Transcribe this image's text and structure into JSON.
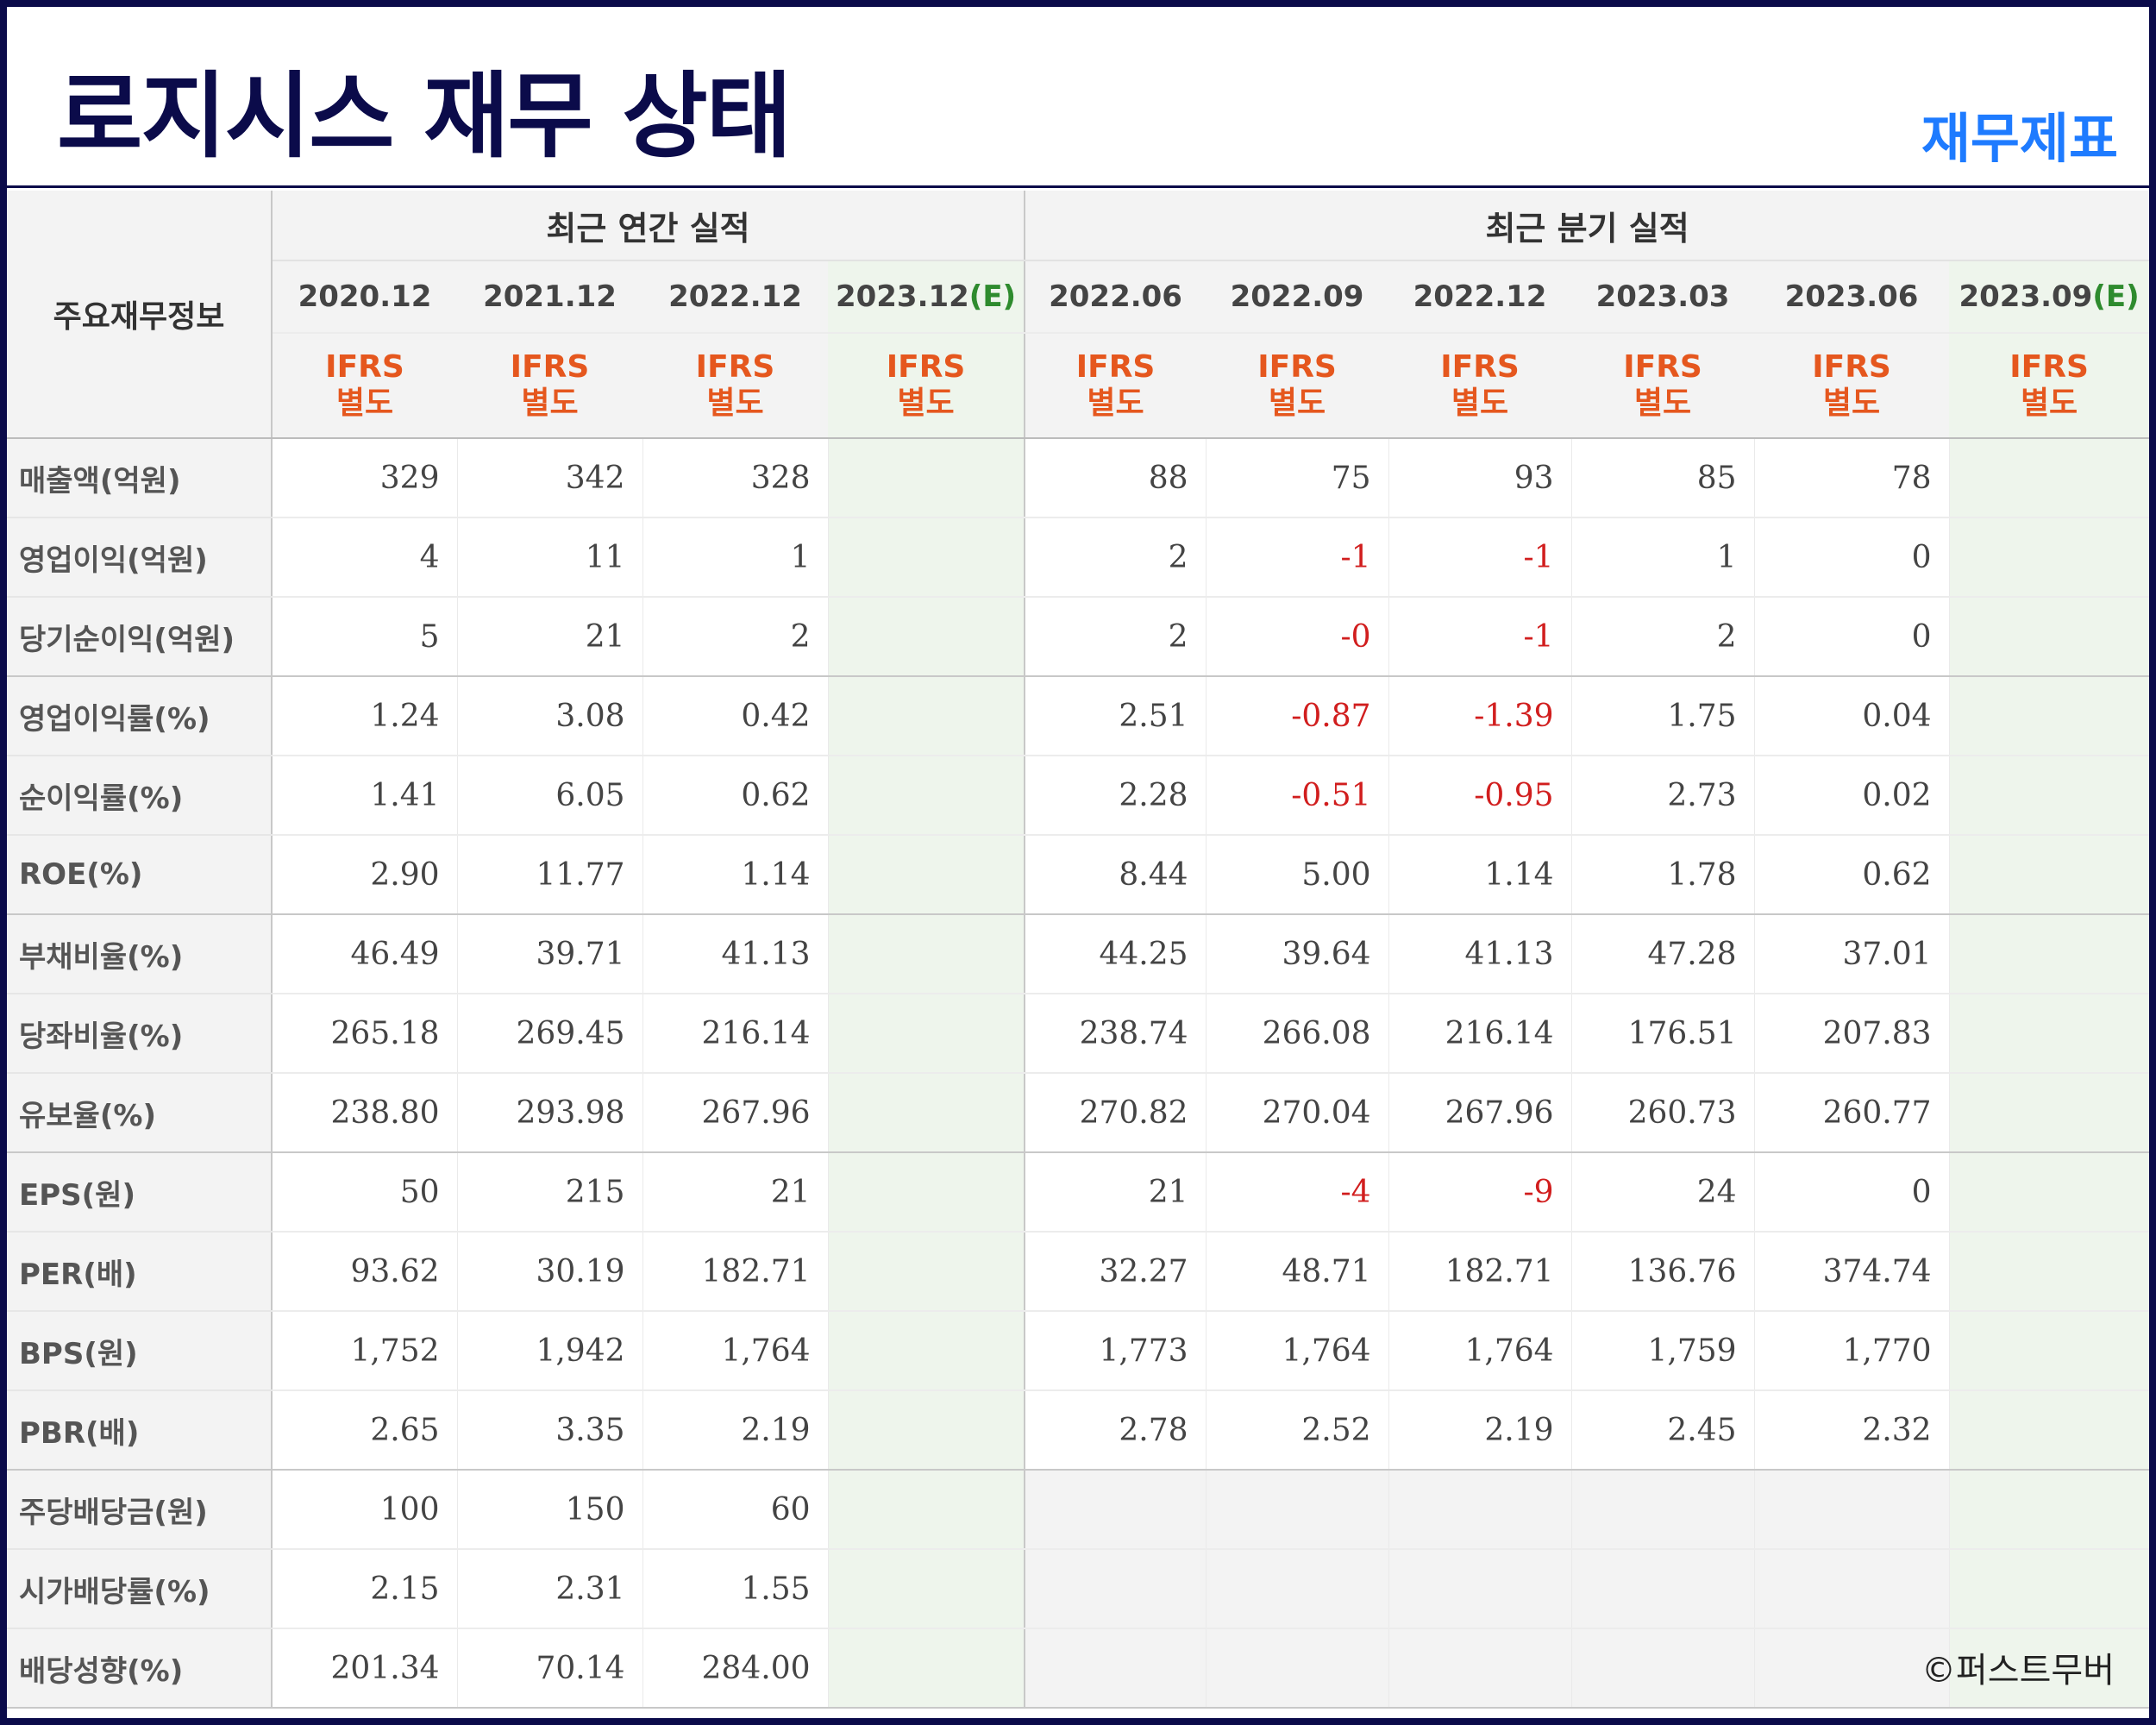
{
  "title": "로지시스 재무 상태",
  "badge": "재무제표",
  "watermark": "©퍼스트무버",
  "table": {
    "main_header": "주요재무정보",
    "annual_header": "최근 연간 실적",
    "quarter_header": "최근 분기 실적",
    "annual_periods": [
      {
        "label": "2020.12",
        "est": ""
      },
      {
        "label": "2021.12",
        "est": ""
      },
      {
        "label": "2022.12",
        "est": ""
      },
      {
        "label": "2023.12",
        "est": "(E)"
      }
    ],
    "quarter_periods": [
      {
        "label": "2022.06",
        "est": ""
      },
      {
        "label": "2022.09",
        "est": ""
      },
      {
        "label": "2022.12",
        "est": ""
      },
      {
        "label": "2023.03",
        "est": ""
      },
      {
        "label": "2023.06",
        "est": ""
      },
      {
        "label": "2023.09",
        "est": "(E)"
      }
    ],
    "ifrs_line1": "IFRS",
    "ifrs_line2": "별도",
    "rows": [
      {
        "label": "매출액(억원)",
        "annual": [
          "329",
          "342",
          "328",
          ""
        ],
        "quarter": [
          "88",
          "75",
          "93",
          "85",
          "78",
          ""
        ]
      },
      {
        "label": "영업이익(억원)",
        "annual": [
          "4",
          "11",
          "1",
          ""
        ],
        "quarter": [
          "2",
          "-1",
          "-1",
          "1",
          "0",
          ""
        ]
      },
      {
        "label": "당기순이익(억원)",
        "annual": [
          "5",
          "21",
          "2",
          ""
        ],
        "quarter": [
          "2",
          "-0",
          "-1",
          "2",
          "0",
          ""
        ]
      },
      {
        "label": "영업이익률(%)",
        "annual": [
          "1.24",
          "3.08",
          "0.42",
          ""
        ],
        "quarter": [
          "2.51",
          "-0.87",
          "-1.39",
          "1.75",
          "0.04",
          ""
        ]
      },
      {
        "label": "순이익률(%)",
        "annual": [
          "1.41",
          "6.05",
          "0.62",
          ""
        ],
        "quarter": [
          "2.28",
          "-0.51",
          "-0.95",
          "2.73",
          "0.02",
          ""
        ]
      },
      {
        "label": "ROE(%)",
        "annual": [
          "2.90",
          "11.77",
          "1.14",
          ""
        ],
        "quarter": [
          "8.44",
          "5.00",
          "1.14",
          "1.78",
          "0.62",
          ""
        ]
      },
      {
        "label": "부채비율(%)",
        "annual": [
          "46.49",
          "39.71",
          "41.13",
          ""
        ],
        "quarter": [
          "44.25",
          "39.64",
          "41.13",
          "47.28",
          "37.01",
          ""
        ]
      },
      {
        "label": "당좌비율(%)",
        "annual": [
          "265.18",
          "269.45",
          "216.14",
          ""
        ],
        "quarter": [
          "238.74",
          "266.08",
          "216.14",
          "176.51",
          "207.83",
          ""
        ]
      },
      {
        "label": "유보율(%)",
        "annual": [
          "238.80",
          "293.98",
          "267.96",
          ""
        ],
        "quarter": [
          "270.82",
          "270.04",
          "267.96",
          "260.73",
          "260.77",
          ""
        ]
      },
      {
        "label": "EPS(원)",
        "annual": [
          "50",
          "215",
          "21",
          ""
        ],
        "quarter": [
          "21",
          "-4",
          "-9",
          "24",
          "0",
          ""
        ]
      },
      {
        "label": "PER(배)",
        "annual": [
          "93.62",
          "30.19",
          "182.71",
          ""
        ],
        "quarter": [
          "32.27",
          "48.71",
          "182.71",
          "136.76",
          "374.74",
          ""
        ]
      },
      {
        "label": "BPS(원)",
        "annual": [
          "1,752",
          "1,942",
          "1,764",
          ""
        ],
        "quarter": [
          "1,773",
          "1,764",
          "1,764",
          "1,759",
          "1,770",
          ""
        ]
      },
      {
        "label": "PBR(배)",
        "annual": [
          "2.65",
          "3.35",
          "2.19",
          ""
        ],
        "quarter": [
          "2.78",
          "2.52",
          "2.19",
          "2.45",
          "2.32",
          ""
        ]
      },
      {
        "label": "주당배당금(원)",
        "annual": [
          "100",
          "150",
          "60",
          ""
        ],
        "quarter": [
          "",
          "",
          "",
          "",
          "",
          ""
        ]
      },
      {
        "label": "시가배당률(%)",
        "annual": [
          "2.15",
          "2.31",
          "1.55",
          ""
        ],
        "quarter": [
          "",
          "",
          "",
          "",
          "",
          ""
        ]
      },
      {
        "label": "배당성향(%)",
        "annual": [
          "201.34",
          "70.14",
          "284.00",
          ""
        ],
        "quarter": [
          "",
          "",
          "",
          "",
          "",
          ""
        ]
      }
    ]
  }
}
